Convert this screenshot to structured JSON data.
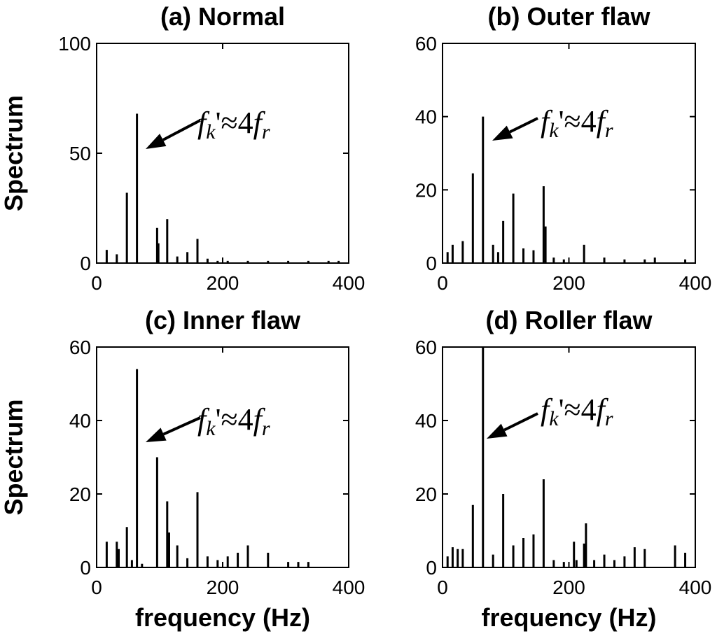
{
  "chart_data": [
    {
      "type": "bar",
      "title": "(a) Normal",
      "xlabel": "",
      "ylabel": "Spectrum",
      "xlim": [
        0,
        400
      ],
      "ylim": [
        0,
        100
      ],
      "xticks": [
        0,
        200,
        400
      ],
      "yticks": [
        0,
        50,
        100
      ],
      "grid": false,
      "annotation": "fk'≈4fr",
      "annotation_x": 64,
      "x": [
        16,
        32,
        48,
        64,
        96,
        98,
        112,
        128,
        144,
        160,
        176,
        192,
        208,
        240,
        272,
        304,
        336,
        368,
        384
      ],
      "values": [
        6,
        4,
        32,
        68,
        16,
        9,
        20,
        3,
        5,
        11,
        2,
        1,
        1,
        1,
        1,
        1,
        1,
        1,
        1
      ]
    },
    {
      "type": "bar",
      "title": "(b) Outer flaw",
      "xlabel": "",
      "ylabel": "",
      "xlim": [
        0,
        400
      ],
      "ylim": [
        0,
        60
      ],
      "xticks": [
        0,
        200,
        400
      ],
      "yticks": [
        0,
        20,
        40,
        60
      ],
      "grid": false,
      "annotation": "fk'≈4fr",
      "annotation_x": 64,
      "x": [
        8,
        16,
        32,
        48,
        64,
        80,
        88,
        96,
        112,
        128,
        144,
        160,
        163,
        176,
        192,
        224,
        256,
        288,
        320,
        336,
        384
      ],
      "values": [
        3,
        5,
        6,
        24.5,
        40,
        5,
        3,
        11.5,
        19,
        4,
        3.5,
        21,
        10,
        1.5,
        1,
        5,
        1.5,
        1,
        1,
        1.5,
        1
      ]
    },
    {
      "type": "bar",
      "title": "(c) Inner flaw",
      "xlabel": "frequency (Hz)",
      "ylabel": "Spectrum",
      "xlim": [
        0,
        400
      ],
      "ylim": [
        0,
        60
      ],
      "xticks": [
        0,
        200,
        400
      ],
      "yticks": [
        0,
        20,
        40,
        60
      ],
      "grid": false,
      "annotation": "fk'≈4fr",
      "annotation_x": 64,
      "x": [
        16,
        32,
        35,
        48,
        56,
        64,
        72,
        96,
        112,
        115,
        128,
        144,
        160,
        176,
        192,
        208,
        224,
        240,
        272,
        304,
        320,
        336
      ],
      "values": [
        7,
        7,
        5,
        11,
        2,
        54,
        1,
        30,
        18,
        9.5,
        6,
        2.5,
        20.5,
        3,
        2,
        3,
        4,
        6,
        4,
        1.5,
        1.5,
        1.5
      ]
    },
    {
      "type": "bar",
      "title": "(d) Roller flaw",
      "xlabel": "frequency (Hz)",
      "ylabel": "",
      "xlim": [
        0,
        400
      ],
      "ylim": [
        0,
        60
      ],
      "xticks": [
        0,
        200,
        400
      ],
      "yticks": [
        0,
        20,
        40,
        60
      ],
      "grid": false,
      "annotation": "fk'≈4fr",
      "annotation_x": 64,
      "x": [
        8,
        16,
        24,
        32,
        48,
        64,
        80,
        96,
        112,
        128,
        144,
        160,
        176,
        192,
        208,
        212,
        224,
        227,
        240,
        256,
        272,
        288,
        304,
        320,
        368,
        384
      ],
      "values": [
        3,
        5.5,
        5,
        5,
        17,
        60,
        3.5,
        20,
        6,
        8,
        9,
        24,
        2,
        1.5,
        7,
        2,
        6.5,
        12,
        2,
        3.5,
        2,
        3,
        5.5,
        5,
        6,
        4
      ]
    }
  ]
}
